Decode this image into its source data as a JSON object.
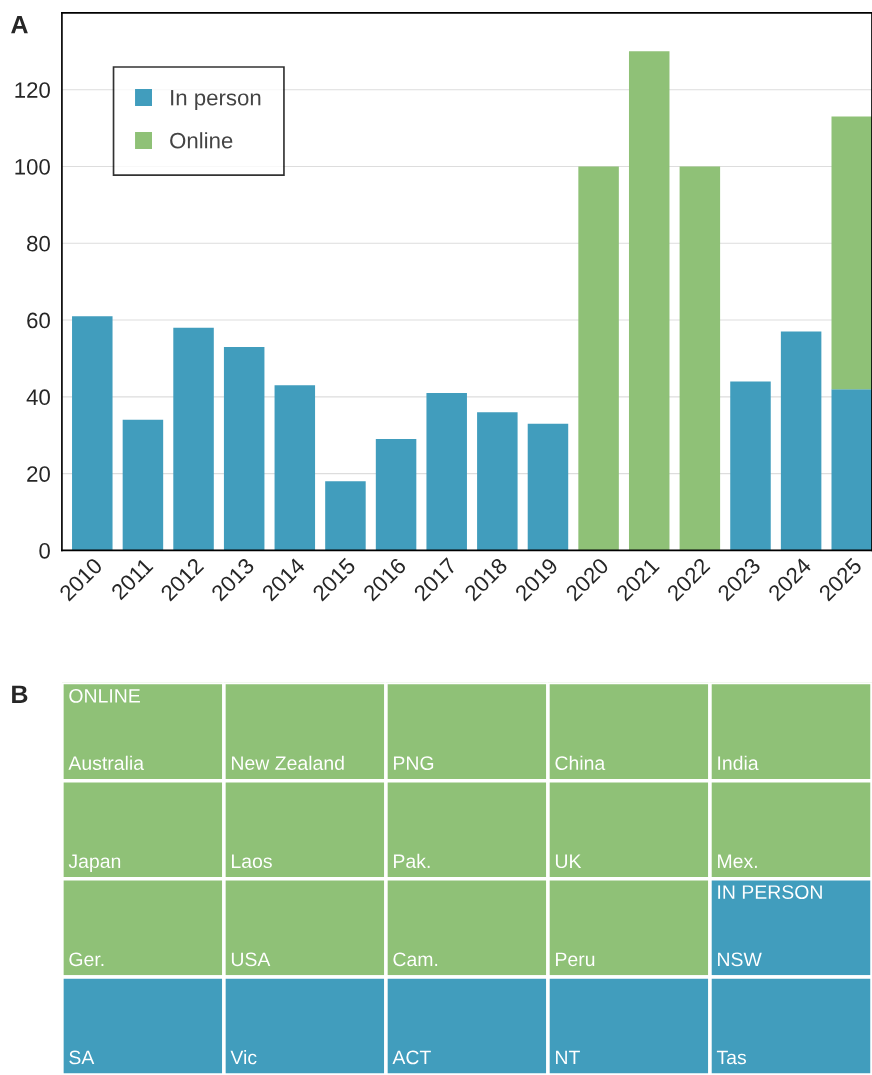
{
  "chart_data": [
    {
      "type": "bar",
      "title": "A",
      "stacked": true,
      "categories": [
        "2010",
        "2011",
        "2012",
        "2013",
        "2014",
        "2015",
        "2016",
        "2017",
        "2018",
        "2019",
        "2020",
        "2021",
        "2022",
        "2023",
        "2024",
        "2025"
      ],
      "series": [
        {
          "name": "In person",
          "color": "#419dbd",
          "values": [
            61,
            34,
            58,
            53,
            43,
            18,
            29,
            41,
            36,
            33,
            0,
            0,
            0,
            44,
            57,
            42
          ]
        },
        {
          "name": "Online",
          "color": "#8fc177",
          "values": [
            0,
            0,
            0,
            0,
            0,
            0,
            0,
            0,
            0,
            0,
            100,
            130,
            100,
            0,
            0,
            71
          ]
        }
      ],
      "ylim": [
        0,
        140
      ],
      "yticks": [
        0,
        20,
        40,
        60,
        80,
        100,
        120
      ],
      "grid": "y",
      "legend": "top left"
    },
    {
      "type": "other",
      "title": "B",
      "categories": [
        "Australia",
        "New Zealand",
        "PNG",
        "China",
        "India",
        "Japan",
        "Laos",
        "Pak.",
        "UK",
        "Mex.",
        "Ger.",
        "USA",
        "Cam.",
        "Peru",
        "NSW",
        "SA",
        "Vic",
        "ACT",
        "NT",
        "Tas"
      ],
      "colors": [
        "#8fc177",
        "#8fc177",
        "#8fc177",
        "#8fc177",
        "#8fc177",
        "#8fc177",
        "#8fc177",
        "#8fc177",
        "#8fc177",
        "#8fc177",
        "#8fc177",
        "#8fc177",
        "#8fc177",
        "#8fc177",
        "#419dbd",
        "#419dbd",
        "#419dbd",
        "#419dbd",
        "#419dbd",
        "#419dbd"
      ],
      "annotations": [
        {
          "text": "ONLINE",
          "x": "Australia"
        },
        {
          "text": "IN PERSON",
          "x": "NSW"
        }
      ]
    }
  ]
}
